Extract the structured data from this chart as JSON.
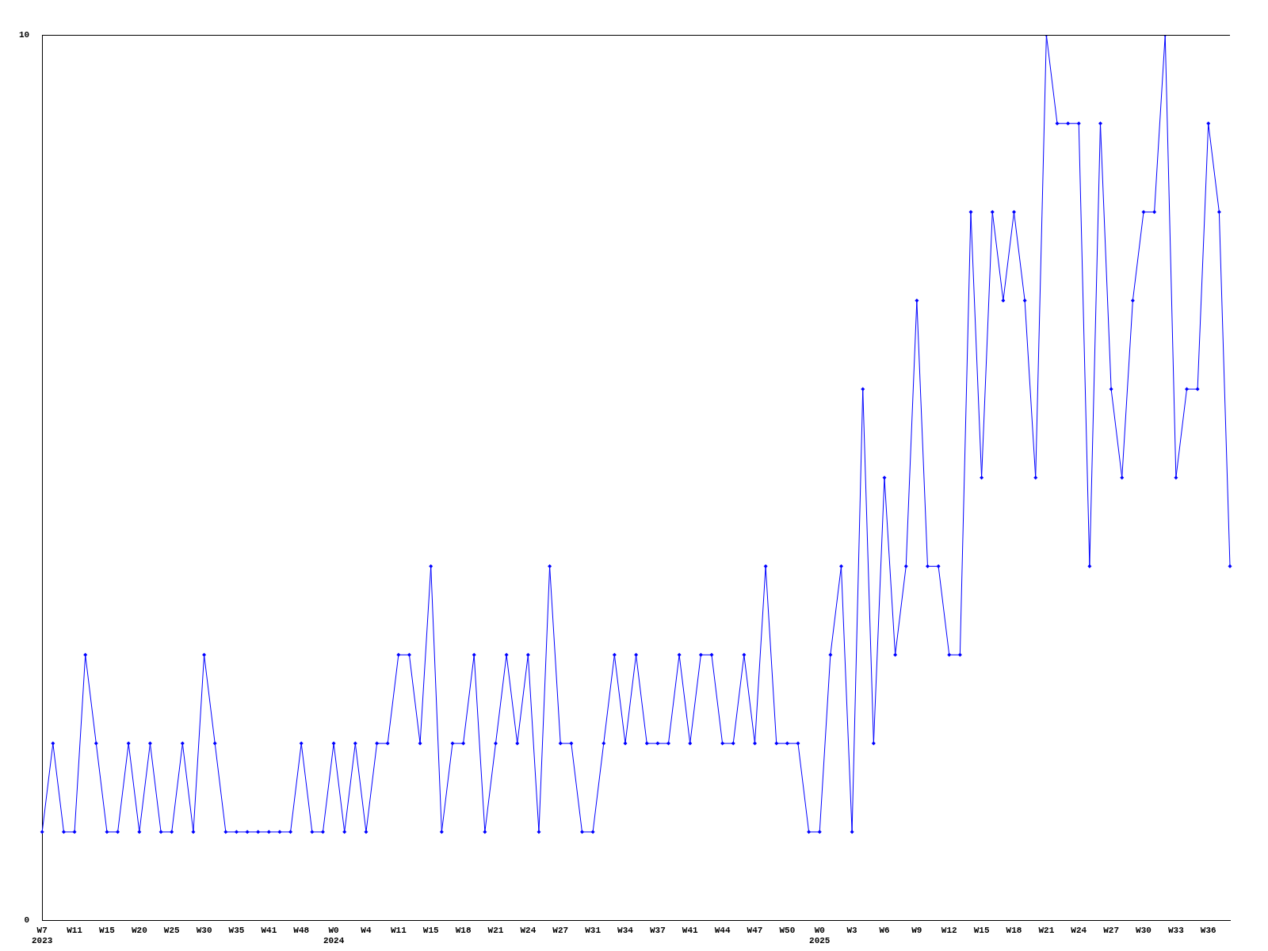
{
  "chart_data": {
    "type": "line",
    "categories": [
      "W7\n2023",
      null,
      null,
      "W11",
      null,
      null,
      "W15",
      null,
      null,
      "W20",
      null,
      null,
      "W25",
      null,
      null,
      "W30",
      null,
      null,
      "W35",
      null,
      null,
      "W41",
      null,
      null,
      "W48",
      null,
      null,
      "W0\n2024",
      null,
      null,
      "W4",
      null,
      null,
      "W11",
      null,
      null,
      "W15",
      null,
      null,
      "W18",
      null,
      null,
      "W21",
      null,
      null,
      "W24",
      null,
      null,
      "W27",
      null,
      null,
      "W31",
      null,
      null,
      "W34",
      null,
      null,
      "W37",
      null,
      null,
      "W41",
      null,
      null,
      "W44",
      null,
      null,
      "W47",
      null,
      null,
      "W50",
      null,
      null,
      "W0\n2025",
      null,
      null,
      "W3",
      null,
      null,
      "W6",
      null,
      null,
      "W9",
      null,
      null,
      "W12",
      null,
      null,
      "W15",
      null,
      null,
      "W18",
      null,
      null,
      "W21",
      null,
      null,
      "W24",
      null,
      null,
      "W27",
      null,
      null,
      "W30",
      null,
      null,
      "W33",
      null,
      null,
      "W36",
      null,
      null
    ],
    "series": [
      {
        "color": "#0000ff",
        "values": [
          1,
          2,
          1,
          1,
          3,
          2,
          1,
          1,
          2,
          1,
          2,
          1,
          1,
          2,
          1,
          3,
          2,
          1,
          1,
          1,
          1,
          1,
          1,
          1,
          2,
          1,
          1,
          2,
          1,
          2,
          1,
          2,
          2,
          3,
          3,
          2,
          4,
          1,
          2,
          2,
          3,
          1,
          2,
          3,
          2,
          3,
          1,
          4,
          2,
          2,
          1,
          1,
          2,
          3,
          2,
          3,
          2,
          2,
          2,
          3,
          2,
          3,
          3,
          2,
          2,
          3,
          2,
          4,
          2,
          2,
          2,
          1,
          1,
          3,
          4,
          1,
          6,
          2,
          5,
          3,
          4,
          7,
          4,
          4,
          3,
          3,
          8,
          5,
          8,
          7,
          8,
          7,
          5,
          10,
          9,
          9,
          9,
          4,
          9,
          6,
          5,
          7,
          8,
          8,
          10,
          5,
          6,
          6,
          9,
          8,
          4
        ]
      }
    ],
    "ylim": [
      0,
      10
    ],
    "yticks": [
      0,
      10
    ],
    "grid": false,
    "legend": false,
    "marker": "diamond",
    "line_style": "solid"
  }
}
